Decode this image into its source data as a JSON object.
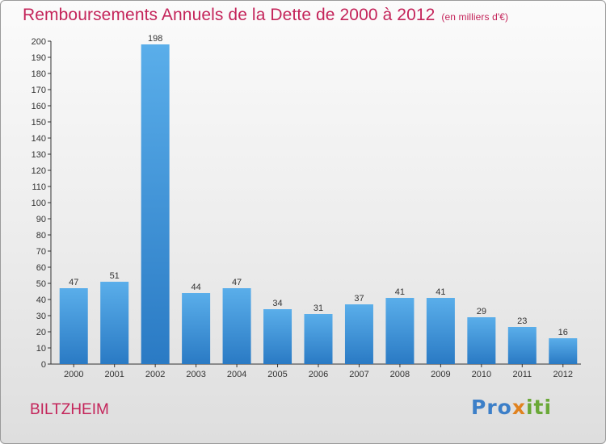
{
  "header": {
    "title": "Remboursements Annuels de la Dette de 2000 à 2012",
    "subtitle": "(en milliers d'€)"
  },
  "footer": {
    "commune": "BILTZHEIM",
    "logo": [
      "Pro",
      "x",
      "iti"
    ]
  },
  "colors": {
    "bar_top": "#5aaeea",
    "bar_bottom": "#2a7ac4",
    "accent": "#c4245a"
  },
  "chart_data": {
    "type": "bar",
    "title": "Remboursements Annuels de la Dette de 2000 à 2012",
    "subtitle": "(en milliers d'€)",
    "categories": [
      "2000",
      "2001",
      "2002",
      "2003",
      "2004",
      "2005",
      "2006",
      "2007",
      "2008",
      "2009",
      "2010",
      "2011",
      "2012"
    ],
    "values": [
      47,
      51,
      198,
      44,
      47,
      34,
      31,
      37,
      41,
      41,
      29,
      23,
      16
    ],
    "ylim": [
      0,
      200
    ],
    "yticks": [
      0,
      10,
      20,
      30,
      40,
      50,
      60,
      70,
      80,
      90,
      100,
      110,
      120,
      130,
      140,
      150,
      160,
      170,
      180,
      190,
      200
    ],
    "grid": false,
    "xlabel": "",
    "ylabel": ""
  }
}
